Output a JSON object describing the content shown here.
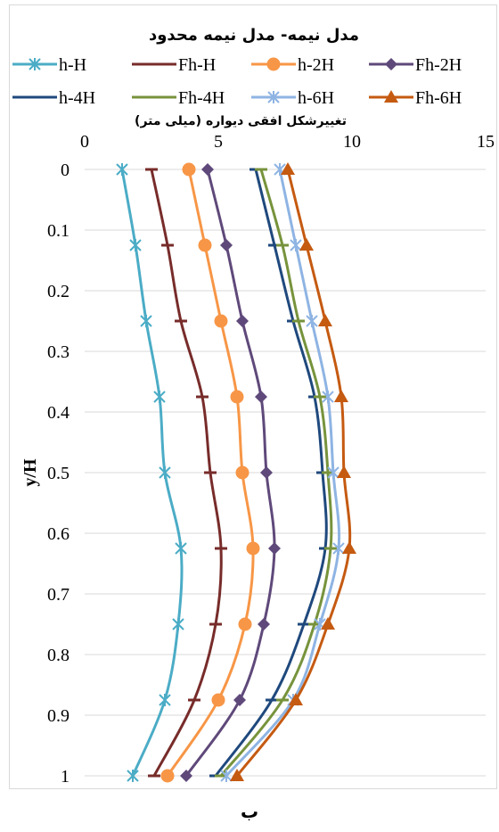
{
  "chart_data": {
    "type": "line",
    "title": "مدل نیمه- مدل نیمه محدود",
    "xlabel": "تغییرشکل افقی دیواره (میلی متر)",
    "ylabel": "y/H",
    "xlim": [
      0,
      15
    ],
    "ylim": [
      0,
      1
    ],
    "y_inverted": true,
    "x_axis_position": "top",
    "x_ticks": [
      "0",
      "5",
      "10",
      "15"
    ],
    "y_ticks": [
      "0",
      "0.1",
      "0.2",
      "0.3",
      "0.4",
      "0.5",
      "0.6",
      "0.7",
      "0.8",
      "0.9",
      "1"
    ],
    "grid": "horizontal",
    "legend_position": "top",
    "y": [
      0,
      0.125,
      0.25,
      0.375,
      0.5,
      0.625,
      0.75,
      0.875,
      1.0
    ],
    "series": [
      {
        "name": "h-H",
        "color": "#4bacc6",
        "marker": "asterisk",
        "x": [
          1.4,
          1.9,
          2.3,
          2.8,
          3.0,
          3.6,
          3.5,
          3.0,
          1.8
        ]
      },
      {
        "name": "Fh-H",
        "color": "#772c2a",
        "marker": "dash",
        "x": [
          2.5,
          3.1,
          3.6,
          4.4,
          4.7,
          5.1,
          4.9,
          4.1,
          2.6
        ]
      },
      {
        "name": "h-2H",
        "color": "#f79646",
        "marker": "circle",
        "x": [
          3.9,
          4.5,
          5.1,
          5.7,
          5.9,
          6.3,
          6.0,
          5.0,
          3.1
        ]
      },
      {
        "name": "Fh-2H",
        "color": "#5f497a",
        "marker": "diamond",
        "x": [
          4.6,
          5.3,
          5.9,
          6.6,
          6.8,
          7.1,
          6.7,
          5.8,
          3.8
        ]
      },
      {
        "name": "h-4H",
        "color": "#1f497d",
        "marker": "dash",
        "x": [
          6.4,
          7.1,
          7.8,
          8.6,
          8.9,
          9.0,
          8.2,
          7.0,
          4.9
        ]
      },
      {
        "name": "Fh-4H",
        "color": "#77933c",
        "marker": "dash",
        "x": [
          6.6,
          7.4,
          8.0,
          8.8,
          9.1,
          9.2,
          8.6,
          7.4,
          5.1
        ]
      },
      {
        "name": "h-6H",
        "color": "#8eb4e3",
        "marker": "asterisk",
        "x": [
          7.3,
          7.9,
          8.5,
          9.1,
          9.3,
          9.5,
          8.8,
          7.8,
          5.3
        ]
      },
      {
        "name": "Fh-6H",
        "color": "#c55a11",
        "marker": "triangle",
        "x": [
          7.6,
          8.3,
          9.0,
          9.6,
          9.7,
          9.9,
          9.1,
          7.9,
          5.7
        ]
      }
    ]
  },
  "caption": "ب"
}
